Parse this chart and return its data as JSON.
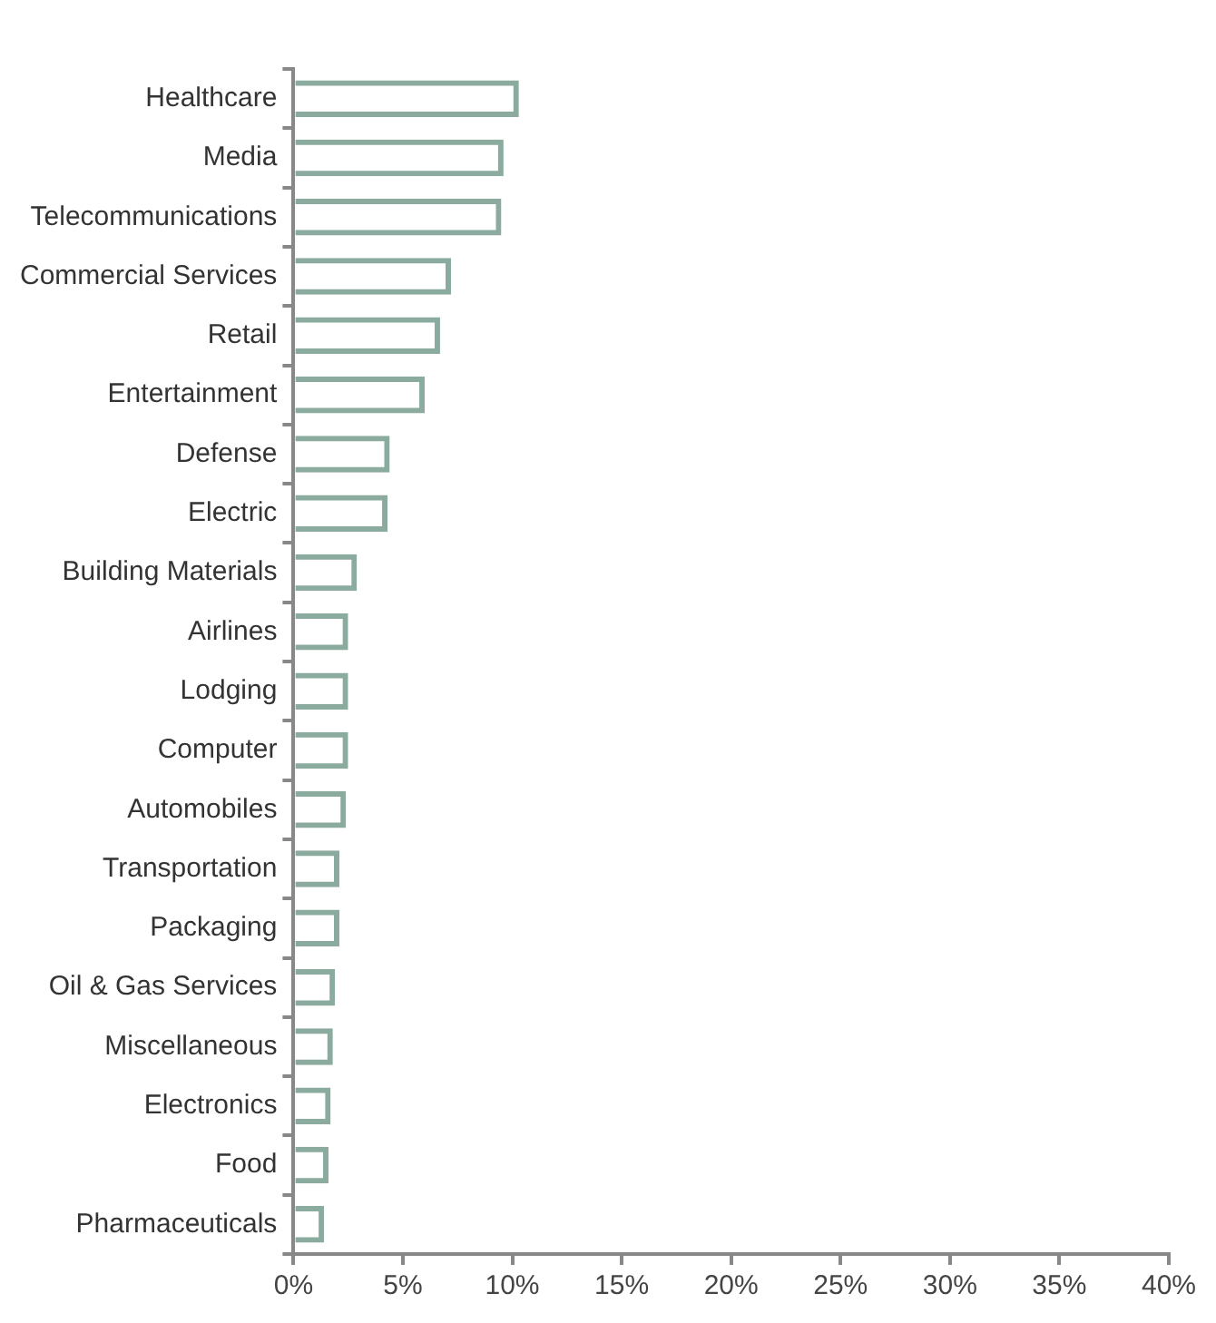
{
  "chart_data": {
    "type": "bar",
    "orientation": "horizontal",
    "categories": [
      "Healthcare",
      "Media",
      "Telecommunications",
      "Commercial Services",
      "Retail",
      "Entertainment",
      "Defense",
      "Electric",
      "Building Materials",
      "Airlines",
      "Lodging",
      "Computer",
      "Automobiles",
      "Transportation",
      "Packaging",
      "Oil & Gas Services",
      "Miscellaneous",
      "Electronics",
      "Food",
      "Pharmaceuticals"
    ],
    "values": [
      10.3,
      9.6,
      9.5,
      7.2,
      6.7,
      6.0,
      4.4,
      4.3,
      2.9,
      2.5,
      2.5,
      2.5,
      2.4,
      2.1,
      2.1,
      1.9,
      1.8,
      1.7,
      1.6,
      1.4
    ],
    "color": "#8aab9e",
    "xlim": [
      0,
      40
    ],
    "xticks": [
      {
        "value": 0,
        "label": "0%"
      },
      {
        "value": 5,
        "label": "5%"
      },
      {
        "value": 10,
        "label": "10%"
      },
      {
        "value": 15,
        "label": "15%"
      },
      {
        "value": 20,
        "label": "20%"
      },
      {
        "value": 25,
        "label": "25%"
      },
      {
        "value": 30,
        "label": "30%"
      },
      {
        "value": 35,
        "label": "35%"
      },
      {
        "value": 40,
        "label": "40%"
      }
    ],
    "grid": false,
    "legend": false
  }
}
